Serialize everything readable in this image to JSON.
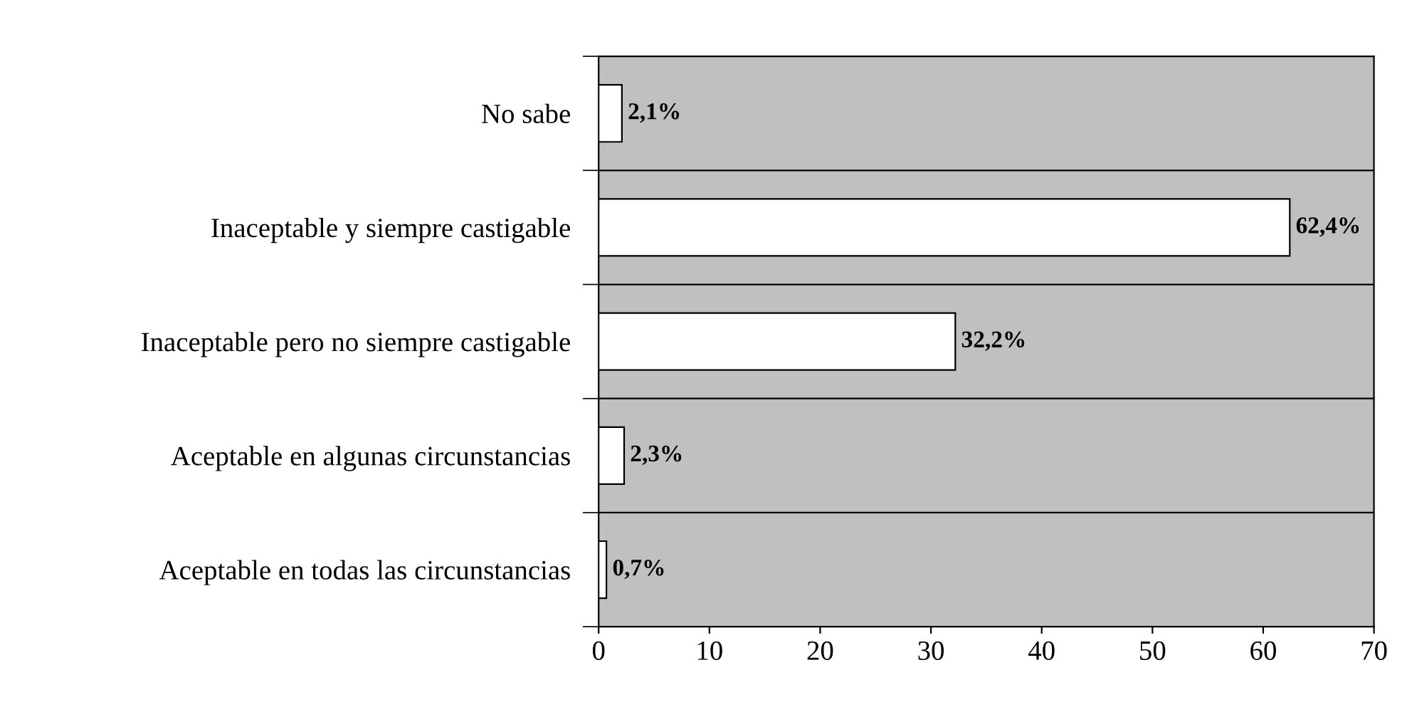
{
  "chart_data": {
    "type": "bar",
    "orientation": "horizontal",
    "categories": [
      "No sabe",
      "Inaceptable y siempre castigable",
      "Inaceptable pero no siempre castigable",
      "Aceptable en algunas circunstancias",
      "Aceptable en todas las circunstancias"
    ],
    "values": [
      2.1,
      62.4,
      32.2,
      2.3,
      0.7
    ],
    "value_labels": [
      "2,1%",
      "62,4%",
      "32,2%",
      "2,3%",
      "0,7%"
    ],
    "color": "#ffffff",
    "xlim": [
      0,
      70
    ],
    "xticks": [
      0,
      10,
      20,
      30,
      40,
      50,
      60,
      70
    ],
    "grid": "y"
  }
}
